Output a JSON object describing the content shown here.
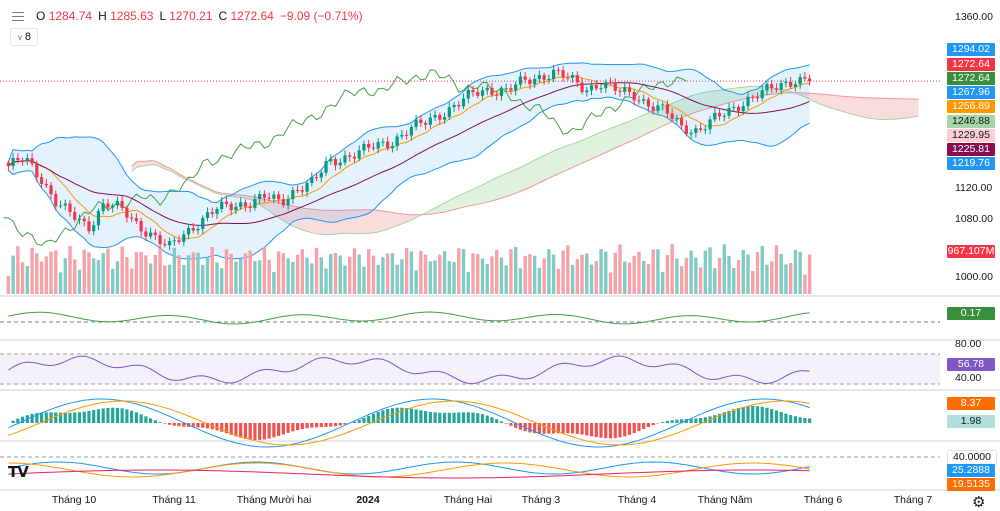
{
  "header": {
    "o_label": "O",
    "o_value": "1284.74",
    "h_label": "H",
    "h_value": "1285.63",
    "l_label": "L",
    "l_value": "1270.21",
    "c_label": "C",
    "c_value": "1272.64",
    "change": "−9.09 (−0.71%)"
  },
  "indicator_count": "8",
  "x_axis_labels": [
    "Tháng 10",
    "Tháng 11",
    "Tháng Mười hai",
    "2024",
    "Tháng Hai",
    "Tháng 3",
    "Tháng 4",
    "Tháng Năm",
    "Tháng 6",
    "Tháng 7"
  ],
  "price_badges": [
    {
      "text": "1294.02",
      "color": "#2196f3",
      "value": 1294.02
    },
    {
      "text": "1272.64",
      "color": "#f23645",
      "value": 1272.64
    },
    {
      "text": "1272.64",
      "color": "#388e3c",
      "value": 1272.64
    },
    {
      "text": "1267.96",
      "color": "#2196f3",
      "value": 1267.96
    },
    {
      "text": "1256.89",
      "color": "#ff9800",
      "value": 1256.89
    },
    {
      "text": "1246.88",
      "color": "#a5d6a7",
      "value": 1246.88
    },
    {
      "text": "1229.95",
      "color": "#ffcdd2",
      "value": 1229.95
    },
    {
      "text": "1225.81",
      "color": "#880e4f",
      "value": 1225.81
    },
    {
      "text": "1219.76",
      "color": "#2196f3",
      "value": 1219.76
    }
  ],
  "volume_badge": {
    "text": "967.107M",
    "color": "#f23645"
  },
  "panel_badges": [
    {
      "text": "0.17",
      "color": "#388e3c"
    },
    {
      "text": "56.78",
      "color": "#7e57c2"
    },
    {
      "text": "8.37",
      "color": "#ff6d00"
    },
    {
      "text": "1.98",
      "color": "#b2dfdb"
    },
    {
      "text": "40.0000",
      "color": "#ffffff"
    },
    {
      "text": "25.2888",
      "color": "#2196f3"
    },
    {
      "text": "19.5135",
      "color": "#ff6d00"
    }
  ],
  "chart_data": {
    "type": "candlestick",
    "symbol_last_close": 1272.64,
    "y_axis_ticks": [
      1360.0,
      1120.0,
      1080.0,
      1000.0
    ],
    "y_range": [
      1000,
      1360
    ],
    "rsi_levels": [
      80.0,
      40.0
    ],
    "rsi_last": 56.78,
    "macd_last": 8.37,
    "macd_hist_last": 1.98,
    "adx_level": 40.0,
    "adx_last": 25.2888,
    "di_last": 19.5135,
    "volume_last": "967.107M",
    "osc_last": 0.17,
    "weekly_closes": [
      1155,
      1165,
      1140,
      1105,
      1085,
      1070,
      1105,
      1095,
      1075,
      1060,
      1040,
      1062,
      1080,
      1095,
      1100,
      1105,
      1112,
      1104,
      1125,
      1132,
      1160,
      1168,
      1175,
      1183,
      1190,
      1205,
      1215,
      1228,
      1240,
      1255,
      1262,
      1258,
      1270,
      1278,
      1285,
      1275,
      1262,
      1270,
      1258,
      1255,
      1240,
      1230,
      1210,
      1204,
      1218,
      1232,
      1246,
      1255,
      1266,
      1275,
      1272.64
    ],
    "bollinger_last": {
      "upper": 1294.02,
      "mid": 1267.96,
      "lower": 1219.76
    },
    "ichimoku_last": {
      "tenkan": 1256.89,
      "kijun": 1225.81,
      "span_a": 1246.88,
      "span_b": 1229.95
    }
  }
}
